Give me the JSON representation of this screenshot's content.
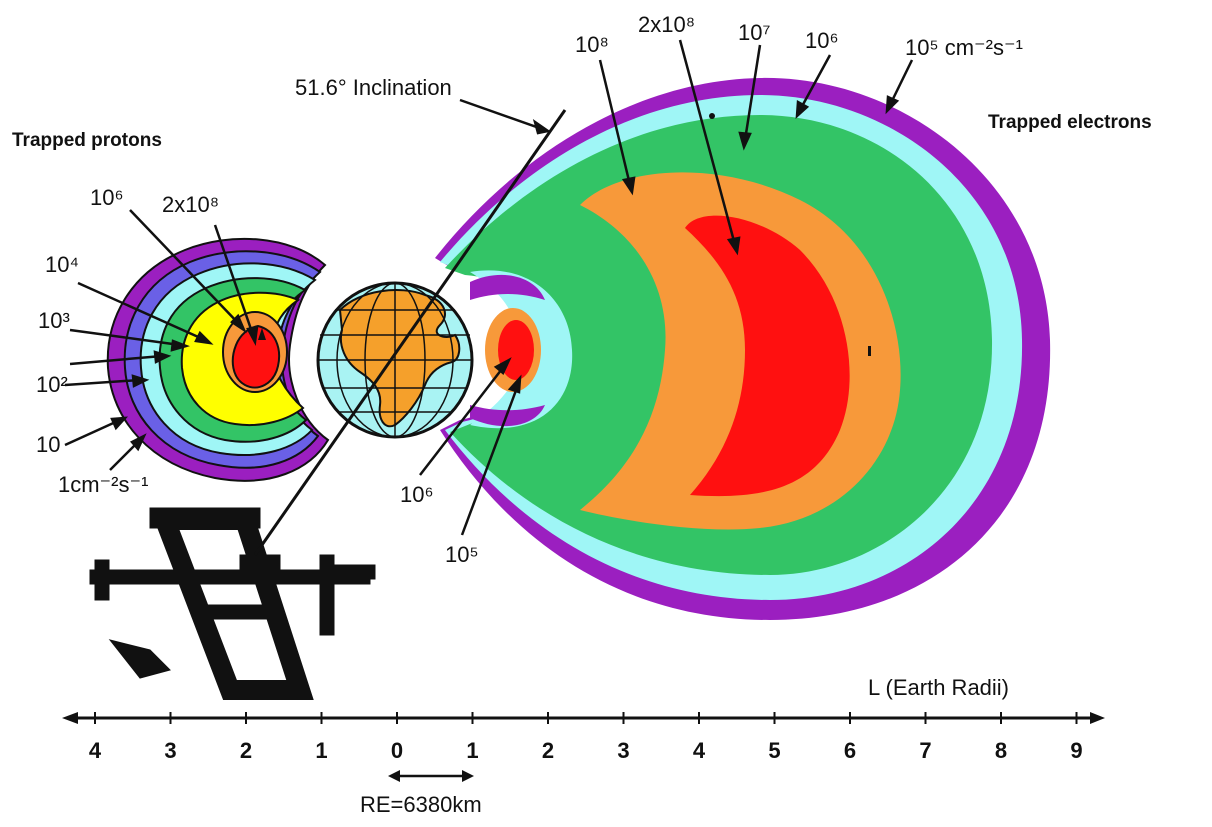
{
  "headings": {
    "protons": "Trapped protons",
    "electrons": "Trapped electrons"
  },
  "inclination_label": "51.6° Inclination",
  "proton_labels": {
    "core": "2x10⁸",
    "level_1e6": "10⁶",
    "level_1e4": "10⁴",
    "level_1e3": "10³",
    "level_1e2": "10²",
    "level_10": "10",
    "level_1": "1cm⁻²s⁻¹"
  },
  "electron_labels": {
    "outer_1e8": "10⁸",
    "core": "2x10⁸",
    "outer_1e7": "10⁷",
    "outer_1e6": "10⁶",
    "outer_1e5": "10⁵ cm⁻²s⁻¹",
    "inner_1e6": "10⁶",
    "inner_1e5": "10⁵"
  },
  "axis": {
    "title": "L (Earth Radii)",
    "ticks": [
      "4",
      "3",
      "2",
      "1",
      "0",
      "1",
      "2",
      "3",
      "4",
      "5",
      "6",
      "7",
      "8",
      "9"
    ]
  },
  "earth_radius": "RE=6380km",
  "colors": {
    "purple": "#9b1fc0",
    "blue": "#6a60e6",
    "cyan": "#9ff6f6",
    "green": "#33c466",
    "yellow": "#ffff00",
    "orange": "#f7993a",
    "red": "#ff1010",
    "earth_land": "#f5a02b",
    "earth_ocean": "#a9f3f3"
  }
}
